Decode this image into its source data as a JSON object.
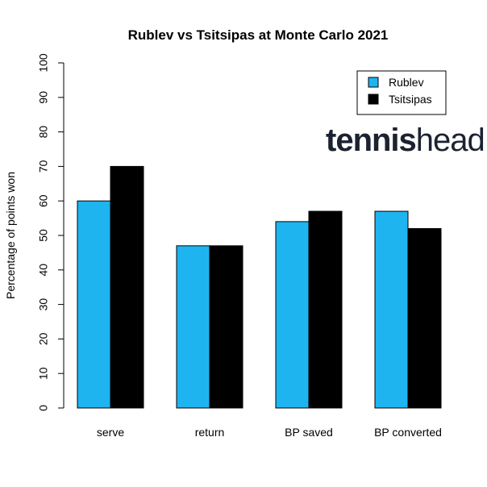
{
  "chart_data": {
    "type": "bar",
    "title": "Rublev vs Tsitsipas at Monte Carlo 2021",
    "xlabel": "",
    "ylabel": "Percentage of points won",
    "categories": [
      "serve",
      "return",
      "BP saved",
      "BP converted"
    ],
    "series": [
      {
        "name": "Rublev",
        "color": "#1EB4F0",
        "values": [
          60,
          47,
          54,
          57
        ]
      },
      {
        "name": "Tsitsipas",
        "color": "#000000",
        "values": [
          70,
          47,
          57,
          52
        ]
      }
    ],
    "ylim": [
      0,
      100
    ],
    "yticks": [
      0,
      10,
      20,
      30,
      40,
      50,
      60,
      70,
      80,
      90,
      100
    ],
    "grid": false,
    "legend_position": "top-right"
  },
  "logo": {
    "part1": "tennis",
    "part2": "head"
  }
}
